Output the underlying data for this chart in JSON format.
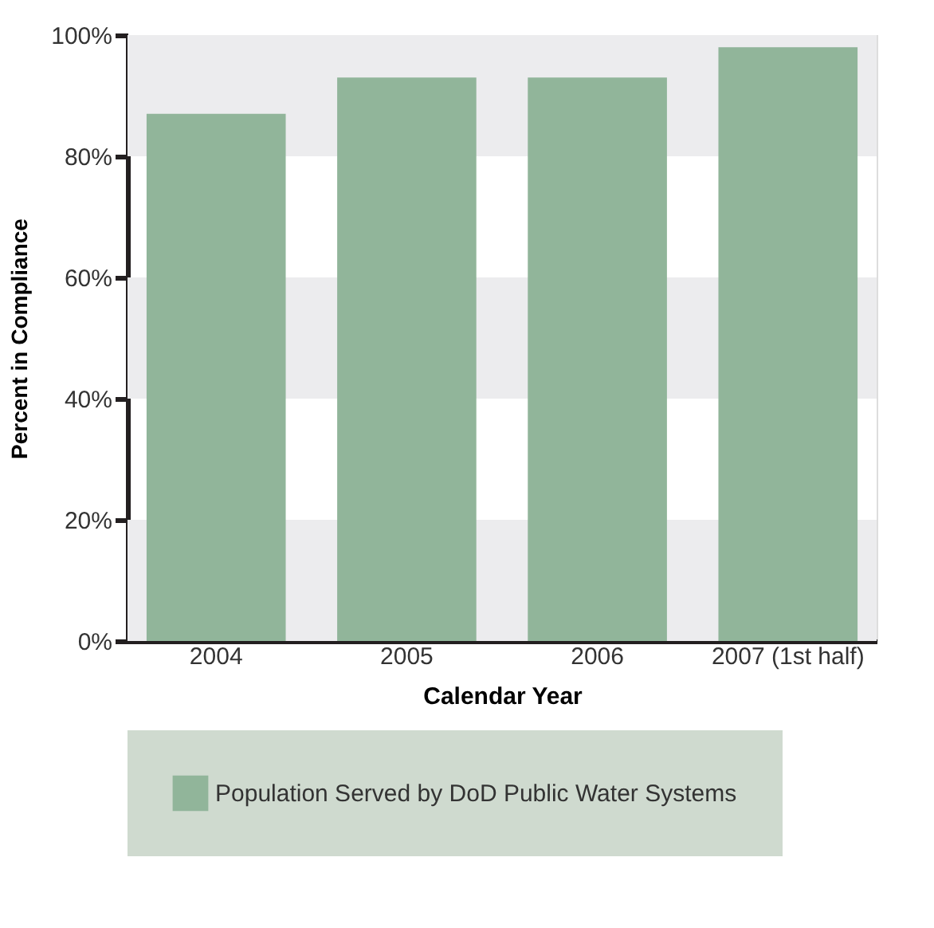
{
  "chart_data": {
    "type": "bar",
    "xlabel": "Calendar Year",
    "ylabel": "Percent in Compliance",
    "categories": [
      "2004",
      "2005",
      "2006",
      "2007 (1st half)"
    ],
    "series": [
      {
        "name": "Population Served by DoD Public Water Systems",
        "color": "#91b59a",
        "values": [
          87,
          93,
          93,
          98
        ]
      }
    ],
    "ylim": [
      0,
      100
    ],
    "yticks": [
      {
        "value": 0,
        "label": "0%"
      },
      {
        "value": 20,
        "label": "20%"
      },
      {
        "value": 40,
        "label": "40%"
      },
      {
        "value": 60,
        "label": "60%"
      },
      {
        "value": 80,
        "label": "80%"
      },
      {
        "value": 100,
        "label": "100%"
      }
    ],
    "bands": [
      {
        "axis": "y",
        "from": 0,
        "to": 20,
        "color": "#ececee"
      },
      {
        "axis": "y",
        "from": 40,
        "to": 60,
        "color": "#ececee"
      },
      {
        "axis": "y",
        "from": 80,
        "to": 100,
        "color": "#ececee"
      }
    ],
    "grid": false,
    "legend": "bottom"
  }
}
